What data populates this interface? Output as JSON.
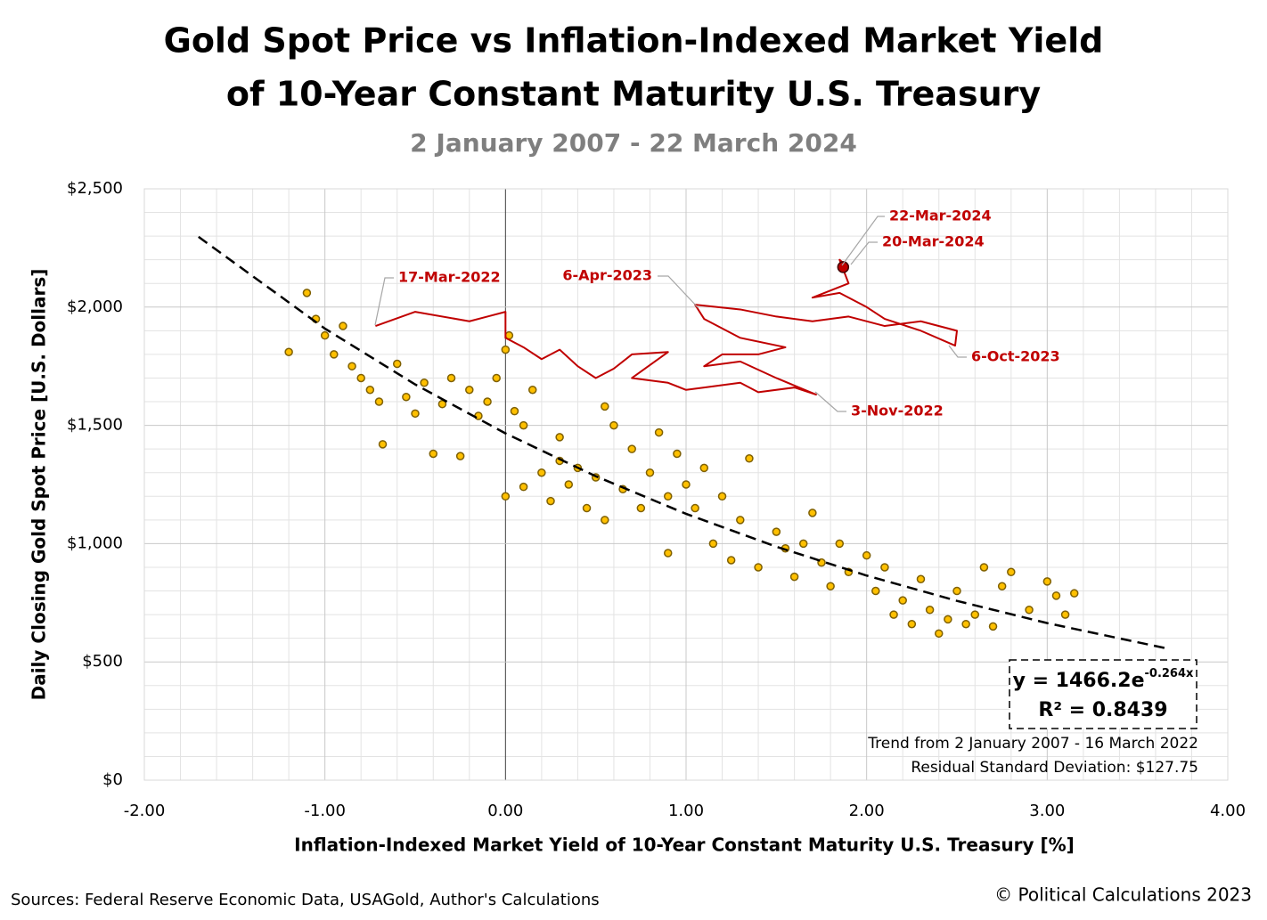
{
  "chart_data": {
    "type": "scatter",
    "title": [
      "Gold Spot Price vs Inflation-Indexed Market Yield",
      "of 10-Year Constant Maturity U.S. Treasury"
    ],
    "subtitle": "2 January 2007 - 22 March 2024",
    "x_label": "Inflation-Indexed Market Yield of 10-Year Constant Maturity U.S. Treasury [%]",
    "y_label": "Daily Closing Gold Spot Price [U.S. Dollars]",
    "xlim": [
      -2,
      4
    ],
    "ylim": [
      0,
      2500
    ],
    "xticks": [
      {
        "value": -2,
        "label": "-2.00"
      },
      {
        "value": -1,
        "label": "-1.00"
      },
      {
        "value": 0,
        "label": "0.00"
      },
      {
        "value": 1,
        "label": "1.00"
      },
      {
        "value": 2,
        "label": "2.00"
      },
      {
        "value": 3,
        "label": "3.00"
      },
      {
        "value": 4,
        "label": "4.00"
      }
    ],
    "yticks": [
      {
        "value": 0,
        "label": "$0"
      },
      {
        "value": 500,
        "label": "$500"
      },
      {
        "value": 1000,
        "label": "$1,000"
      },
      {
        "value": 1500,
        "label": "$1,500"
      },
      {
        "value": 2000,
        "label": "$2,000"
      },
      {
        "value": 2500,
        "label": "$2,500"
      }
    ],
    "x_minor_grid": [
      -1.8,
      -1.6,
      -1.4,
      -1.2,
      -0.8,
      -0.6,
      -0.4,
      -0.2,
      0.2,
      0.4,
      0.6,
      0.8,
      1.2,
      1.4,
      1.6,
      1.8,
      2.2,
      2.4,
      2.6,
      2.8,
      3.2,
      3.4,
      3.6,
      3.8
    ],
    "y_minor_grid": [
      100,
      200,
      300,
      400,
      600,
      700,
      800,
      900,
      1100,
      1200,
      1300,
      1400,
      1600,
      1700,
      1800,
      1900,
      2100,
      2200,
      2300,
      2400
    ],
    "grid": true,
    "points": {
      "color": "#ffc000",
      "edge_color": "#7f6000",
      "x": [
        -1.2,
        -1.1,
        -1.05,
        -1.0,
        -0.95,
        -0.9,
        -0.85,
        -0.8,
        -0.75,
        -0.7,
        -0.68,
        -0.6,
        -0.55,
        -0.5,
        -0.45,
        -0.4,
        -0.35,
        -0.3,
        -0.25,
        -0.2,
        -0.15,
        -0.1,
        -0.05,
        0,
        0.02,
        0.05,
        0.0,
        0.1,
        0.1,
        0.15,
        0.2,
        0.25,
        0.3,
        0.3,
        0.35,
        0.4,
        0.45,
        0.5,
        0.55,
        0.55,
        0.6,
        0.65,
        0.7,
        0.75,
        0.8,
        0.85,
        0.9,
        0.95,
        1.0,
        1.05,
        1.1,
        1.15,
        0.9,
        1.2,
        1.25,
        1.3,
        1.35,
        1.4,
        1.5,
        1.55,
        1.6,
        1.65,
        1.7,
        1.75,
        1.8,
        1.85,
        1.9,
        2.0,
        2.05,
        2.1,
        2.15,
        2.2,
        2.25,
        2.3,
        2.35,
        2.4,
        2.45,
        2.5,
        2.55,
        2.6,
        2.7,
        2.75,
        2.8,
        2.9,
        3.0,
        3.05,
        3.1,
        3.15,
        2.65
      ],
      "values": [
        1810,
        2060,
        1950,
        1880,
        1800,
        1920,
        1750,
        1700,
        1650,
        1600,
        1420,
        1760,
        1620,
        1550,
        1680,
        1380,
        1590,
        1700,
        1370,
        1650,
        1540,
        1600,
        1700,
        1820,
        1880,
        1560,
        1200,
        1240,
        1500,
        1650,
        1300,
        1180,
        1350,
        1450,
        1250,
        1320,
        1150,
        1280,
        1100,
        1580,
        1500,
        1230,
        1400,
        1150,
        1300,
        1470,
        1200,
        1380,
        1250,
        1150,
        1320,
        1000,
        960,
        1200,
        930,
        1100,
        1360,
        900,
        1050,
        980,
        860,
        1000,
        1130,
        920,
        820,
        1000,
        880,
        950,
        800,
        900,
        700,
        760,
        660,
        850,
        720,
        620,
        680,
        800,
        660,
        700,
        650,
        820,
        880,
        720,
        840,
        780,
        700,
        790,
        900
      ]
    },
    "series": [
      {
        "color": "#c00000",
        "x": [
          -0.72,
          -0.5,
          -0.2,
          -0.1,
          0,
          0,
          0.1,
          0.2,
          0.3,
          0.4,
          0.5,
          0.6,
          0.7,
          0.9,
          0.7,
          0.9,
          1.0,
          1.1,
          1.3,
          1.4,
          1.6,
          1.72,
          1.5,
          1.3,
          1.1,
          1.2,
          1.4,
          1.55,
          1.3,
          1.1,
          1.05,
          1.3,
          1.5,
          1.7,
          1.9,
          2.1,
          2.3,
          2.5,
          2.49,
          2.3,
          2.1,
          2.0,
          1.85,
          1.7,
          1.9,
          1.85,
          1.88,
          1.87
        ],
        "values": [
          1920,
          1980,
          1940,
          1960,
          1980,
          1870,
          1830,
          1780,
          1820,
          1750,
          1700,
          1740,
          1800,
          1810,
          1700,
          1680,
          1650,
          1660,
          1680,
          1640,
          1660,
          1630,
          1700,
          1770,
          1750,
          1800,
          1800,
          1830,
          1870,
          1950,
          2010,
          1990,
          1960,
          1940,
          1960,
          1920,
          1940,
          1900,
          1837,
          1900,
          1950,
          2000,
          2060,
          2040,
          2100,
          2200,
          2180,
          2169
        ]
      }
    ],
    "trendline": {
      "color": "#000000",
      "x": [
        -1.7,
        -1,
        -0.5,
        0,
        0.5,
        1,
        1.5,
        2,
        2.5,
        3,
        3.65
      ],
      "values": [
        2297,
        1909,
        1673,
        1466,
        1285,
        1126,
        987,
        865,
        758,
        664,
        559
      ]
    },
    "equation": {
      "text": "y = 1466.2e",
      "superscript": "-0.264x"
    },
    "r_squared": "R² = 0.8439",
    "trend_note": "Trend from 2 January 2007 - 16 March 2022",
    "residual_note": "Residual Standard Deviation: $127.75",
    "annotations": [
      "17-Mar-2022",
      "6-Apr-2023",
      "22-Mar-2024",
      "20-Mar-2024",
      "6-Oct-2023",
      "3-Nov-2022"
    ],
    "sources": "Sources: Federal Reserve Economic Data, USAGold, Author's Calculations",
    "copyright": "© Political Calculations 2023"
  }
}
